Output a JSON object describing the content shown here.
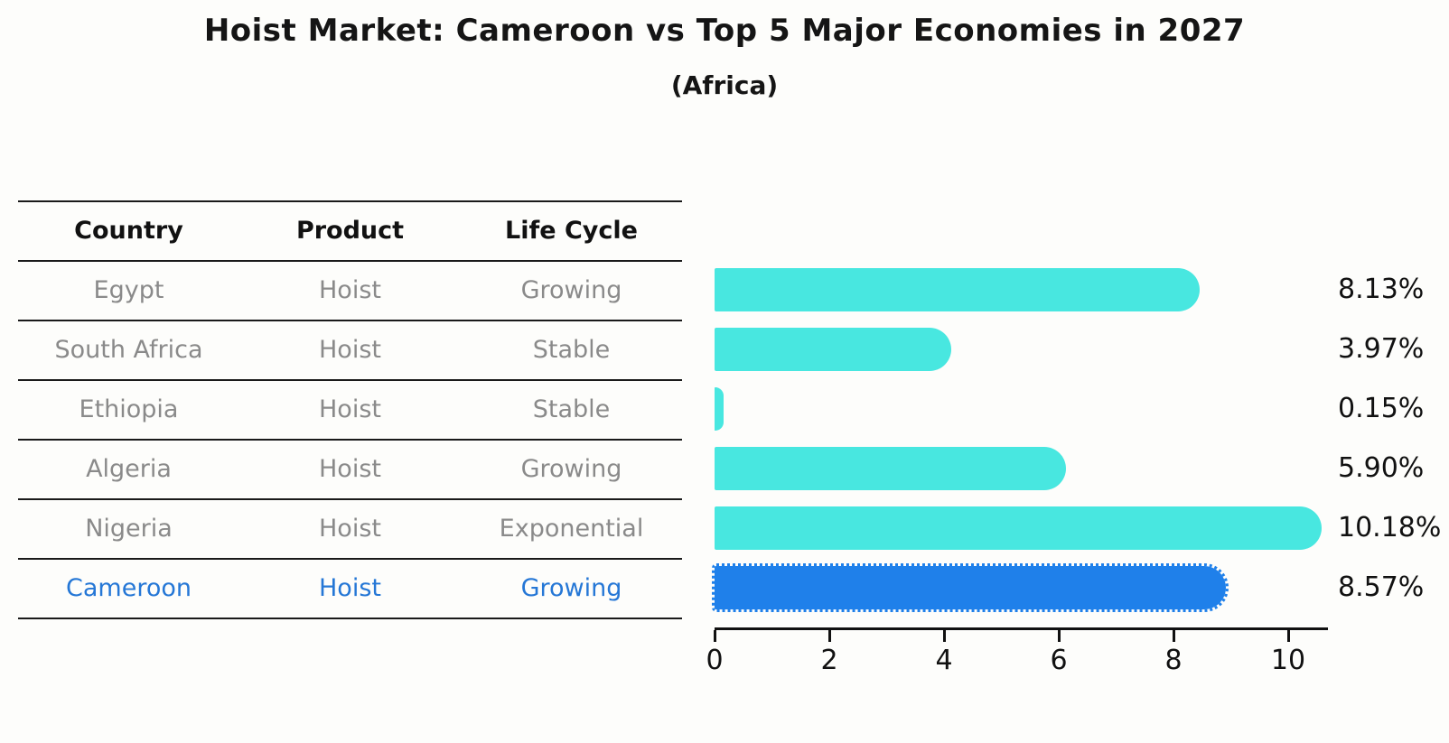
{
  "title": "Hoist Market: Cameroon vs Top 5 Major Economies in 2027",
  "subtitle": "(Africa)",
  "table": {
    "headers": [
      "Country",
      "Product",
      "Life Cycle"
    ],
    "rows": [
      {
        "country": "Egypt",
        "product": "Hoist",
        "life_cycle": "Growing",
        "highlight": false
      },
      {
        "country": "South Africa",
        "product": "Hoist",
        "life_cycle": "Stable",
        "highlight": false
      },
      {
        "country": "Ethiopia",
        "product": "Hoist",
        "life_cycle": "Stable",
        "highlight": false
      },
      {
        "country": "Algeria",
        "product": "Hoist",
        "life_cycle": "Growing",
        "highlight": false
      },
      {
        "country": "Nigeria",
        "product": "Hoist",
        "life_cycle": "Exponential",
        "highlight": false
      },
      {
        "country": "Cameroon",
        "product": "Hoist",
        "life_cycle": "Growing",
        "highlight": true
      }
    ]
  },
  "chart_data": {
    "type": "bar",
    "orientation": "horizontal",
    "title": "Hoist Market: Cameroon vs Top 5 Major Economies in 2027",
    "subtitle": "(Africa)",
    "categories": [
      "Egypt",
      "South Africa",
      "Ethiopia",
      "Algeria",
      "Nigeria",
      "Cameroon"
    ],
    "values": [
      8.13,
      3.97,
      0.15,
      5.9,
      10.18,
      8.57
    ],
    "value_labels": [
      "8.13%",
      "3.97%",
      "0.15%",
      "5.90%",
      "10.18%",
      "8.57%"
    ],
    "xticks": [
      0,
      2,
      4,
      6,
      8,
      10
    ],
    "xlim": [
      0,
      10.7
    ],
    "grid": false,
    "legend": false,
    "highlight_index": 5,
    "bar_color": "#48E7E0",
    "highlight_color": "#1F80EA"
  },
  "colors": {
    "bar_cyan": "#48E7E0",
    "accent_blue": "#1F80EA",
    "highlight_text": "#2577D6",
    "table_text": "#8A8A8A",
    "heading_text": "#151515",
    "line": "#1A1A1A"
  }
}
